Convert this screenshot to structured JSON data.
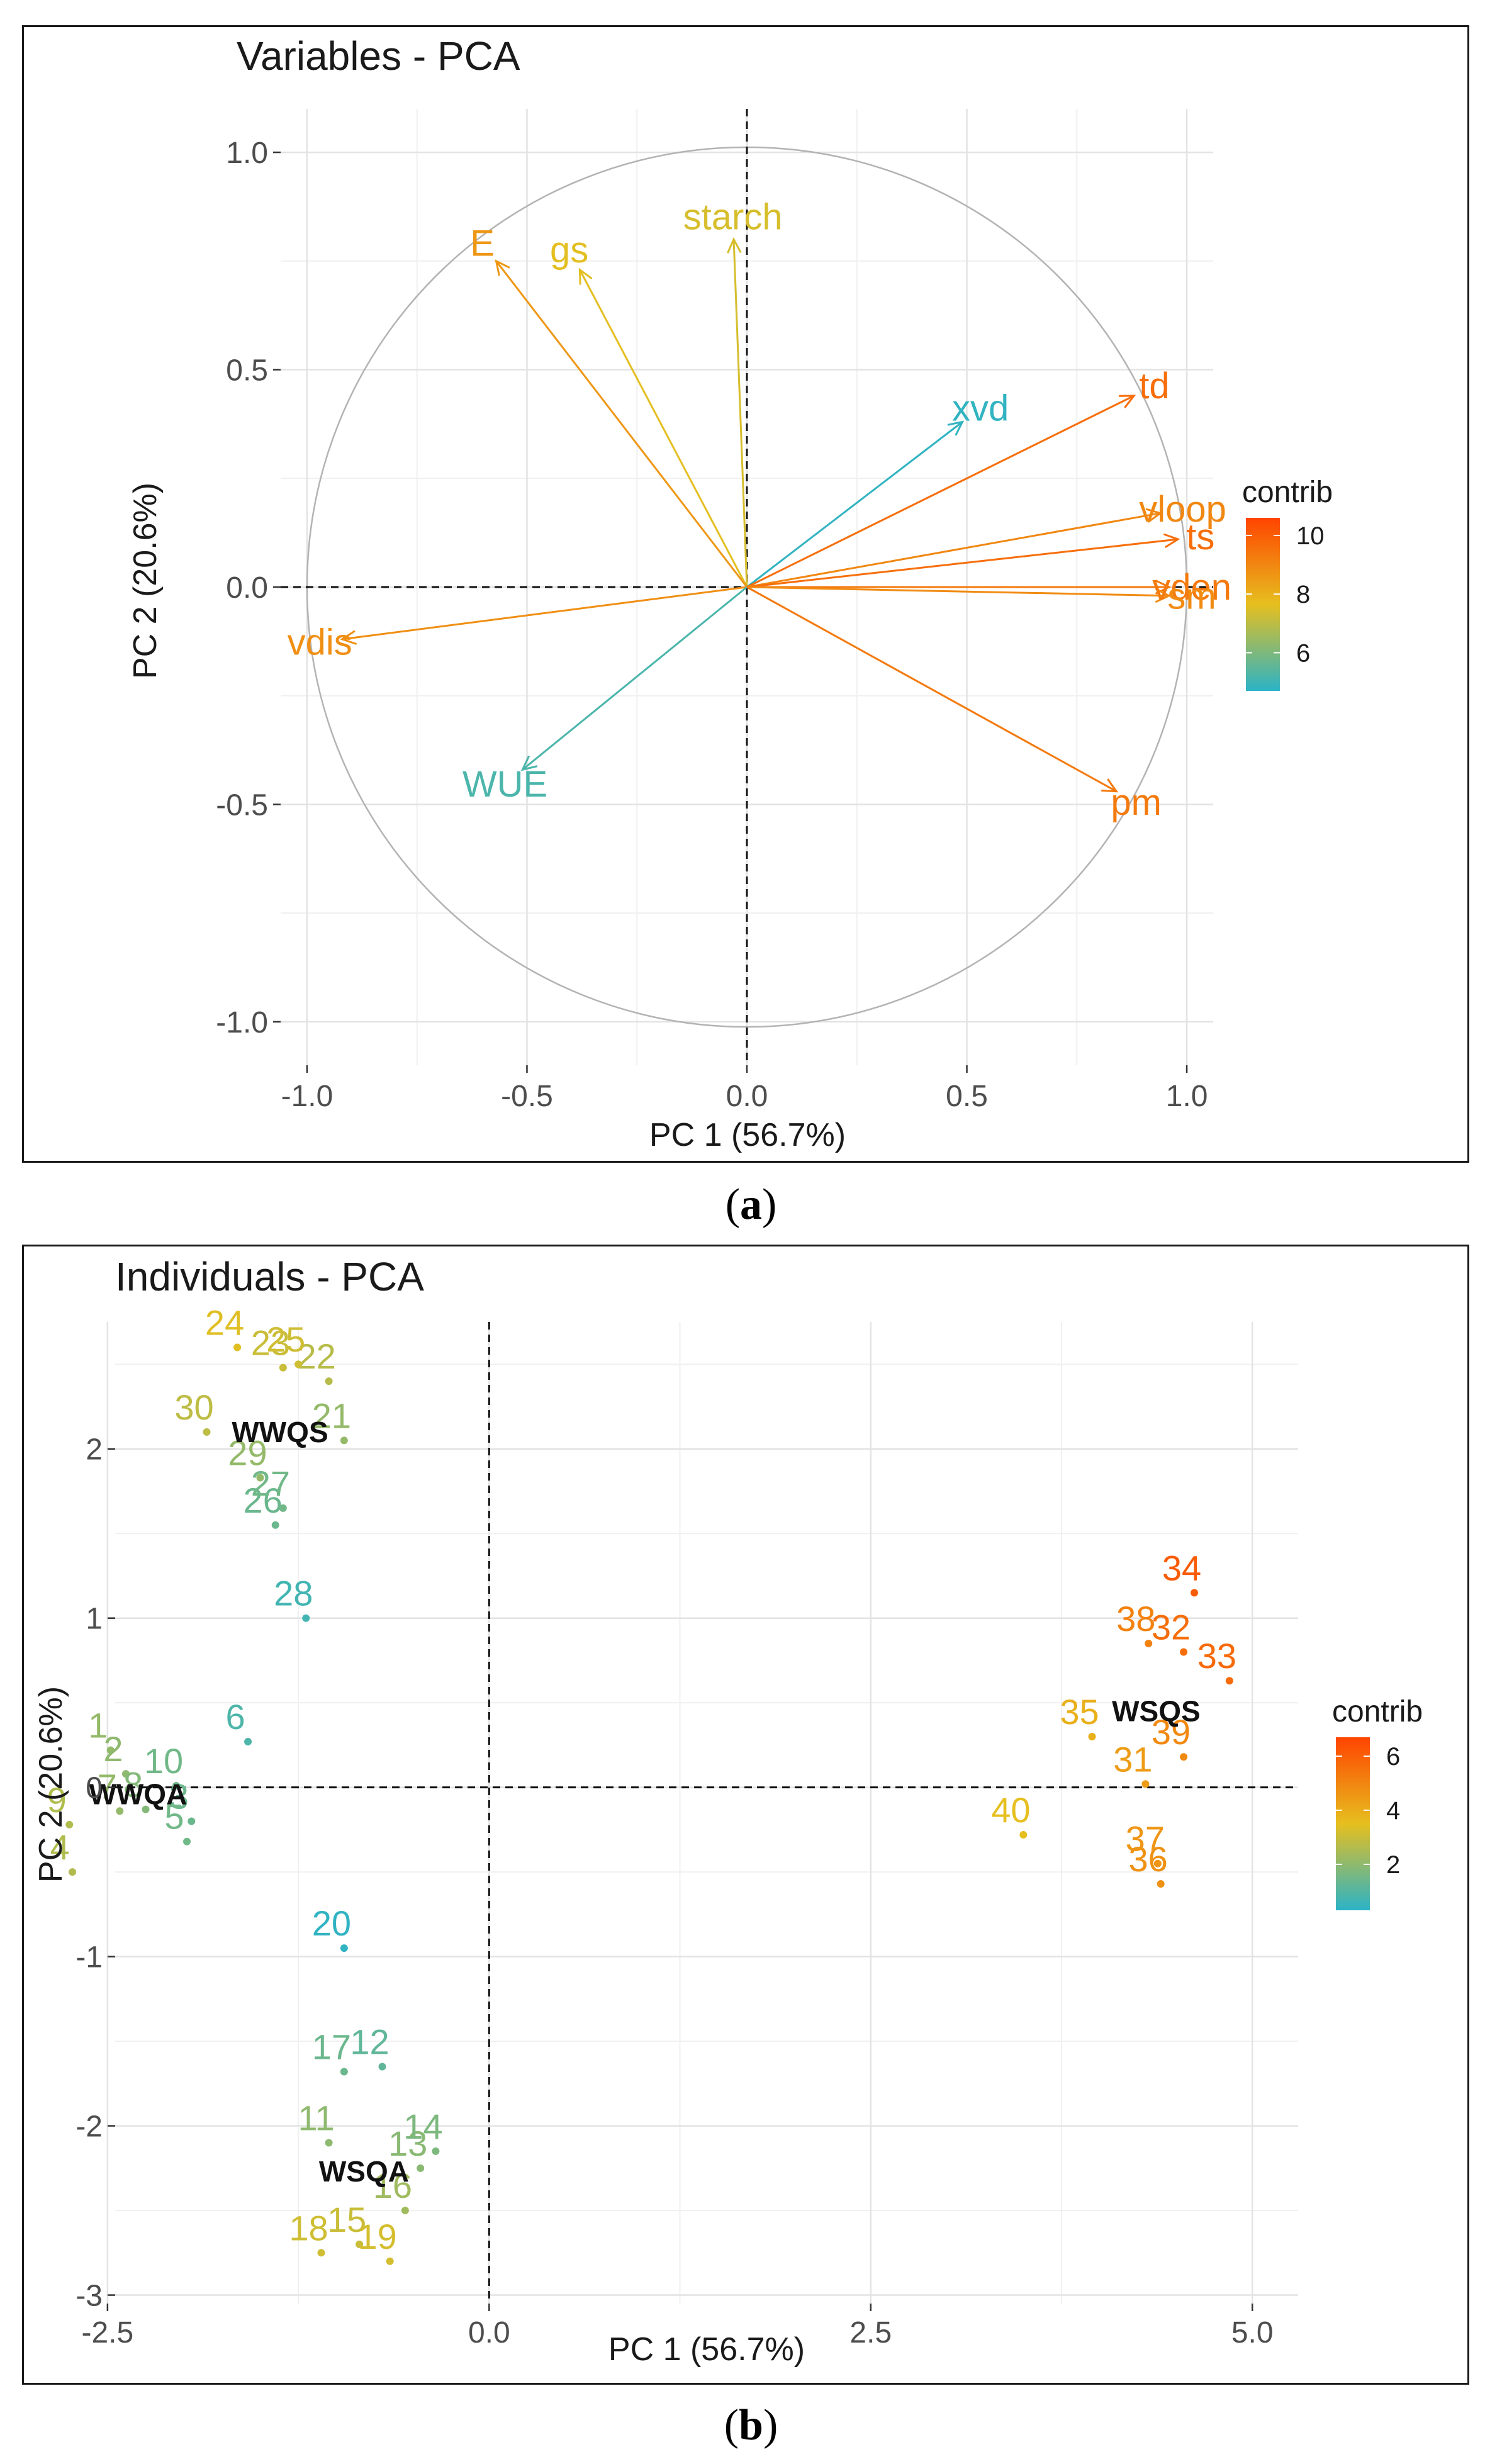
{
  "captions": [
    "a",
    "b"
  ],
  "chart_data": [
    {
      "type": "scatter",
      "title": "Variables - PCA",
      "xlabel": "PC 1 (56.7%)",
      "ylabel": "PC 2 (20.6%)",
      "xlim": [
        -1.0,
        1.0
      ],
      "ylim": [
        -1.0,
        1.0
      ],
      "xticks": [
        -1.0,
        -0.5,
        0.0,
        0.5,
        1.0
      ],
      "xtick_labels": [
        "-1.0",
        "-0.5",
        "0.0",
        "0.5",
        "1.0"
      ],
      "yticks": [
        -1.0,
        -0.5,
        0.0,
        0.5,
        1.0
      ],
      "ytick_labels": [
        "-1.0",
        "-0.5",
        "0.0",
        "0.5",
        "1.0"
      ],
      "grid": true,
      "correlation_circle": true,
      "legend": {
        "title": "contrib",
        "position": "right",
        "range": [
          4.7,
          10.6
        ],
        "ticks": [
          6,
          8,
          10
        ],
        "tick_labels": [
          "6",
          "8",
          "10"
        ]
      },
      "gradient_colors": [
        "#2bb3c7",
        "#e6bf1f",
        "#ff4400"
      ],
      "arrows": [
        {
          "label": "starch",
          "x": -0.03,
          "y": 0.8,
          "contrib": 7.4
        },
        {
          "label": "gs",
          "x": -0.38,
          "y": 0.73,
          "contrib": 7.6
        },
        {
          "label": "E",
          "x": -0.57,
          "y": 0.75,
          "contrib": 8.6
        },
        {
          "label": "xvd",
          "x": 0.49,
          "y": 0.38,
          "contrib": 4.8
        },
        {
          "label": "td",
          "x": 0.88,
          "y": 0.44,
          "contrib": 9.6
        },
        {
          "label": "vloop",
          "x": 0.94,
          "y": 0.17,
          "contrib": 9.0
        },
        {
          "label": "ts",
          "x": 0.98,
          "y": 0.11,
          "contrib": 9.6
        },
        {
          "label": "vden",
          "x": 0.96,
          "y": 0.0,
          "contrib": 9.3
        },
        {
          "label": "sm",
          "x": 0.96,
          "y": -0.02,
          "contrib": 8.9
        },
        {
          "label": "vdis",
          "x": -0.92,
          "y": -0.12,
          "contrib": 8.8
        },
        {
          "label": "WUE",
          "x": -0.51,
          "y": -0.42,
          "contrib": 5.2
        },
        {
          "label": "pm",
          "x": 0.84,
          "y": -0.47,
          "contrib": 9.3
        }
      ]
    },
    {
      "type": "scatter",
      "title": "Individuals - PCA",
      "xlabel": "PC 1 (56.7%)",
      "ylabel": "PC 2 (20.6%)",
      "xlim": [
        -3.0,
        5.3
      ],
      "ylim": [
        -3.0,
        2.8
      ],
      "xticks": [
        -2.5,
        0.0,
        2.5,
        5.0
      ],
      "xtick_labels": [
        "-2.5",
        "0.0",
        "2.5",
        "5.0"
      ],
      "yticks": [
        -3,
        -2,
        -1,
        0,
        1,
        2
      ],
      "ytick_labels": [
        "-3",
        "-2",
        "-1",
        "0",
        "1",
        "2"
      ],
      "grid": true,
      "legend": {
        "title": "contrib",
        "position": "right",
        "range": [
          0.3,
          6.7
        ],
        "ticks": [
          2,
          4,
          6
        ],
        "tick_labels": [
          "2",
          "4",
          "6"
        ]
      },
      "gradient_colors": [
        "#2bb3c7",
        "#e6bf1f",
        "#ff4400"
      ],
      "points": [
        {
          "label": "1",
          "x": -2.48,
          "y": 0.22,
          "contrib": 2.1
        },
        {
          "label": "2",
          "x": -2.38,
          "y": 0.08,
          "contrib": 2.0
        },
        {
          "label": "3",
          "x": -1.95,
          "y": -0.2,
          "contrib": 1.4
        },
        {
          "label": "4",
          "x": -2.73,
          "y": -0.5,
          "contrib": 2.6
        },
        {
          "label": "5",
          "x": -1.98,
          "y": -0.32,
          "contrib": 1.5
        },
        {
          "label": "6",
          "x": -1.58,
          "y": 0.27,
          "contrib": 0.9
        },
        {
          "label": "7",
          "x": -2.42,
          "y": -0.14,
          "contrib": 2.1
        },
        {
          "label": "8",
          "x": -2.25,
          "y": -0.13,
          "contrib": 1.8
        },
        {
          "label": "9",
          "x": -2.75,
          "y": -0.22,
          "contrib": 2.6
        },
        {
          "label": "10",
          "x": -2.05,
          "y": 0.01,
          "contrib": 1.5
        },
        {
          "label": "11",
          "x": -1.05,
          "y": -2.1,
          "contrib": 2.0
        },
        {
          "label": "12",
          "x": -0.7,
          "y": -1.65,
          "contrib": 1.2
        },
        {
          "label": "13",
          "x": -0.45,
          "y": -2.25,
          "contrib": 1.9
        },
        {
          "label": "14",
          "x": -0.35,
          "y": -2.15,
          "contrib": 1.7
        },
        {
          "label": "15",
          "x": -0.85,
          "y": -2.7,
          "contrib": 3.0
        },
        {
          "label": "16",
          "x": -0.55,
          "y": -2.5,
          "contrib": 2.3
        },
        {
          "label": "17",
          "x": -0.95,
          "y": -1.68,
          "contrib": 1.4
        },
        {
          "label": "18",
          "x": -1.1,
          "y": -2.75,
          "contrib": 3.1
        },
        {
          "label": "19",
          "x": -0.65,
          "y": -2.8,
          "contrib": 3.2
        },
        {
          "label": "20",
          "x": -0.95,
          "y": -0.95,
          "contrib": 0.4
        },
        {
          "label": "21",
          "x": -0.95,
          "y": 2.05,
          "contrib": 2.1
        },
        {
          "label": "22",
          "x": -1.05,
          "y": 2.4,
          "contrib": 2.7
        },
        {
          "label": "23",
          "x": -1.35,
          "y": 2.48,
          "contrib": 3.0
        },
        {
          "label": "24",
          "x": -1.65,
          "y": 2.6,
          "contrib": 3.4
        },
        {
          "label": "25",
          "x": -1.25,
          "y": 2.5,
          "contrib": 3.1
        },
        {
          "label": "26",
          "x": -1.4,
          "y": 1.55,
          "contrib": 1.4
        },
        {
          "label": "27",
          "x": -1.35,
          "y": 1.65,
          "contrib": 1.5
        },
        {
          "label": "28",
          "x": -1.2,
          "y": 1.0,
          "contrib": 0.7
        },
        {
          "label": "29",
          "x": -1.5,
          "y": 1.83,
          "contrib": 2.1
        },
        {
          "label": "30",
          "x": -1.85,
          "y": 2.1,
          "contrib": 2.8
        },
        {
          "label": "31",
          "x": 4.3,
          "y": 0.02,
          "contrib": 4.4
        },
        {
          "label": "32",
          "x": 4.55,
          "y": 0.8,
          "contrib": 5.6
        },
        {
          "label": "33",
          "x": 4.85,
          "y": 0.63,
          "contrib": 5.7
        },
        {
          "label": "34",
          "x": 4.62,
          "y": 1.15,
          "contrib": 6.1
        },
        {
          "label": "35",
          "x": 3.95,
          "y": 0.3,
          "contrib": 3.9
        },
        {
          "label": "36",
          "x": 4.4,
          "y": -0.57,
          "contrib": 4.7
        },
        {
          "label": "37",
          "x": 4.38,
          "y": -0.45,
          "contrib": 4.6
        },
        {
          "label": "38",
          "x": 4.32,
          "y": 0.85,
          "contrib": 5.1
        },
        {
          "label": "39",
          "x": 4.55,
          "y": 0.18,
          "contrib": 4.9
        },
        {
          "label": "40",
          "x": 3.5,
          "y": -0.28,
          "contrib": 3.5
        }
      ],
      "group_labels": [
        {
          "label": "WWQS",
          "x": -1.37,
          "y": 2.1
        },
        {
          "label": "WWQA",
          "x": -2.3,
          "y": -0.04
        },
        {
          "label": "WSQA",
          "x": -0.82,
          "y": -2.27
        },
        {
          "label": "WSQS",
          "x": 4.37,
          "y": 0.45
        }
      ]
    }
  ]
}
